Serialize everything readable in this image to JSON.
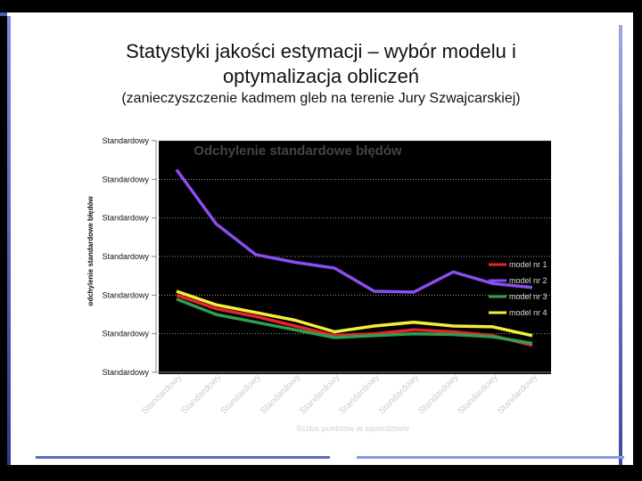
{
  "slide": {
    "title": "Statystyki jakości estymacji – wybór modelu i optymalizacja obliczeń",
    "subtitle": "(zanieczyszczenie kadmem gleb na terenie Jury Szwajcarskiej)"
  },
  "chart_data": {
    "type": "line",
    "title": "Odchylenie standardowe błędów",
    "xlabel": "liczba punktów w sąsiedztwie",
    "ylabel": "odchylenie standardowe błędów",
    "y_tick_labels": [
      "Standardowy",
      "Standardowy",
      "Standardowy",
      "Standardowy",
      "Standardowy",
      "Standardowy",
      "Standardowy"
    ],
    "x_tick_labels": [
      "Standardowy",
      "Standardowy",
      "Standardowy",
      "Standardowy",
      "Standardowy",
      "Standardowy",
      "Standardowy",
      "Standardowy",
      "Standardowy",
      "Standardowy"
    ],
    "x": [
      1,
      2,
      3,
      4,
      5,
      6,
      7,
      8,
      9,
      10
    ],
    "ylim": [
      0,
      6
    ],
    "grid": true,
    "legend_position": "right",
    "series": [
      {
        "name": "model nr 1",
        "color": "#e8232a",
        "values": [
          2.0,
          1.65,
          1.45,
          1.2,
          0.95,
          1.0,
          1.1,
          1.05,
          0.95,
          0.7
        ]
      },
      {
        "name": "model nr 2",
        "color": "#8a4df0",
        "values": [
          5.25,
          3.85,
          3.05,
          2.85,
          2.7,
          2.1,
          2.08,
          2.6,
          2.3,
          2.2
        ]
      },
      {
        "name": "model nr 3",
        "color": "#2e9e52",
        "values": [
          1.9,
          1.5,
          1.3,
          1.1,
          0.9,
          0.95,
          1.0,
          0.98,
          0.92,
          0.75
        ]
      },
      {
        "name": "model nr 4",
        "color": "#f5ef3a",
        "values": [
          2.1,
          1.75,
          1.55,
          1.35,
          1.05,
          1.2,
          1.3,
          1.2,
          1.18,
          0.95
        ]
      }
    ]
  }
}
